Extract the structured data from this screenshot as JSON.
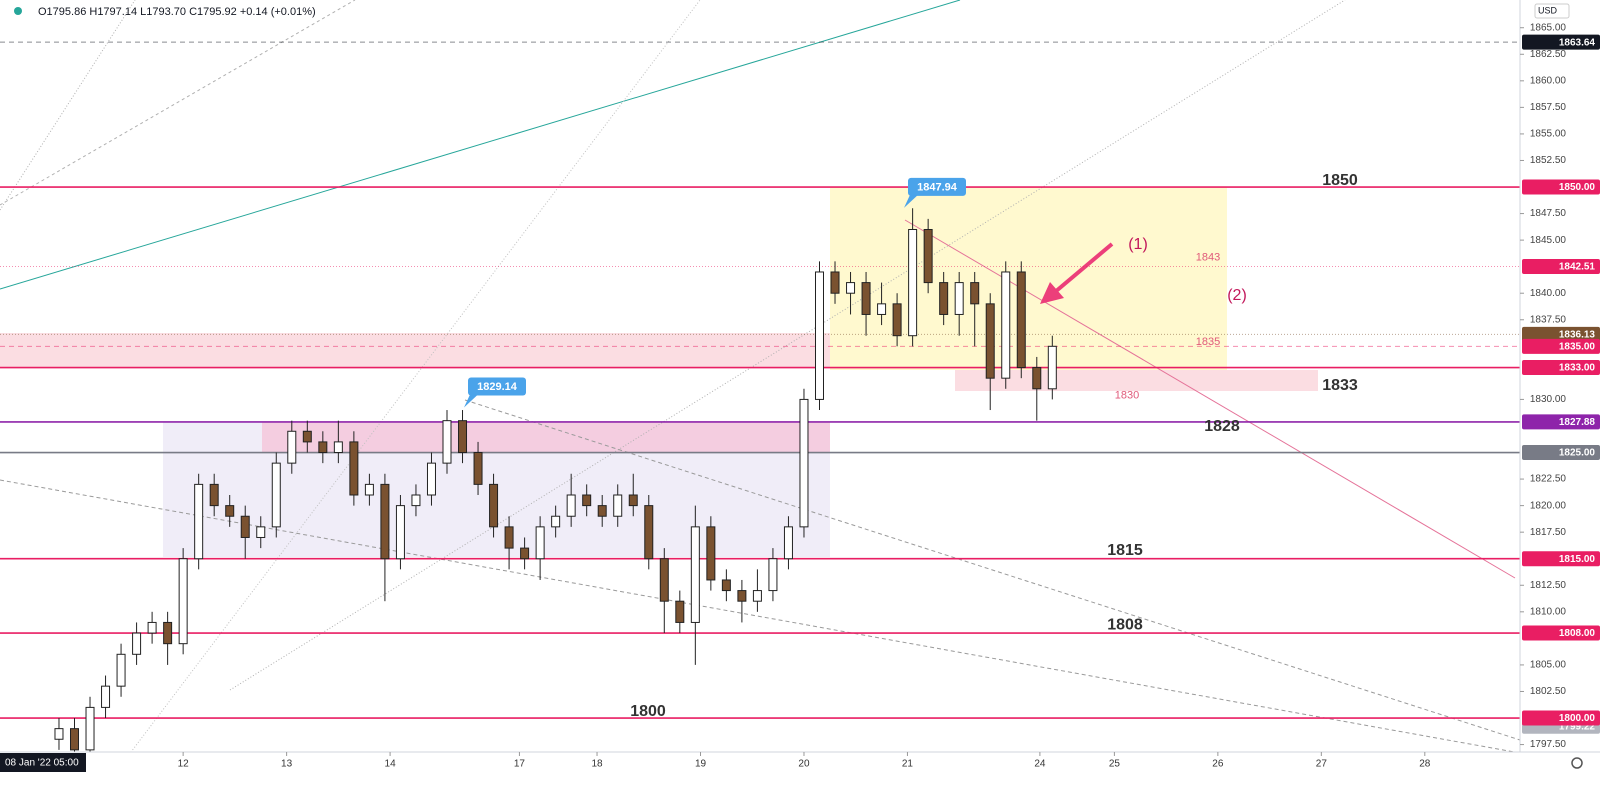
{
  "chart_data": {
    "type": "candlestick",
    "header": "O1795.86 H1797.14 L1793.70 C1795.92 +0.14 (+0.01%)",
    "currency": "USD",
    "crosshair_time": "08 Jan '22 05:00",
    "up_color": "#ffffff",
    "down_color": "#7a5230",
    "xlim": [
      -1.77,
      12.92
    ],
    "ylim": [
      1796.8,
      1867.61
    ],
    "x": [
      -1.2,
      -1.05,
      -0.9,
      -0.75,
      -0.6,
      -0.45,
      -0.3,
      -0.15,
      0,
      0.15,
      0.3,
      0.45,
      0.6,
      0.75,
      0.9,
      1.05,
      1.2,
      1.35,
      1.5,
      1.65,
      1.8,
      1.95,
      2.1,
      2.25,
      2.4,
      2.55,
      2.7,
      2.85,
      3,
      3.15,
      3.3,
      3.45,
      3.6,
      3.75,
      3.9,
      4.05,
      4.2,
      4.35,
      4.5,
      4.65,
      4.8,
      4.95,
      5.1,
      5.25,
      5.4,
      5.55,
      5.7,
      5.85,
      6,
      6.15,
      6.3,
      6.45,
      6.6,
      6.75,
      6.9,
      7.05,
      7.2,
      7.35,
      7.5,
      7.65,
      7.8,
      7.95,
      8.1,
      8.25,
      8.4
    ],
    "open": [
      1798,
      1799,
      1797,
      1801,
      1803,
      1806,
      1808,
      1809,
      1807,
      1815,
      1822,
      1820,
      1819,
      1817,
      1818,
      1824,
      1827,
      1826,
      1825,
      1826,
      1821,
      1822,
      1815,
      1820,
      1821,
      1824,
      1828,
      1825,
      1822,
      1818,
      1816,
      1815,
      1818,
      1819,
      1821,
      1820,
      1819,
      1821,
      1820,
      1815,
      1811,
      1809,
      1818,
      1813,
      1812,
      1811,
      1812,
      1815,
      1818,
      1830,
      1842,
      1840,
      1841,
      1838,
      1839,
      1836,
      1846,
      1841,
      1838,
      1841,
      1839,
      1832,
      1842,
      1833,
      1831
    ],
    "high": [
      1800,
      1800,
      1802,
      1804,
      1807,
      1809,
      1810,
      1810,
      1816,
      1823,
      1823,
      1821,
      1820,
      1819,
      1825,
      1828,
      1828,
      1827,
      1828,
      1827,
      1823,
      1823,
      1821,
      1822,
      1825,
      1829,
      1829,
      1826,
      1823,
      1819,
      1817,
      1819,
      1820,
      1823,
      1822,
      1821,
      1822,
      1823,
      1821,
      1816,
      1812,
      1820,
      1819,
      1814,
      1813,
      1814,
      1816,
      1819,
      1831,
      1843,
      1843,
      1842,
      1842,
      1841,
      1840,
      1848,
      1847,
      1842,
      1842,
      1842,
      1840,
      1843,
      1843,
      1834,
      1836
    ],
    "low": [
      1797,
      1796,
      1796,
      1800,
      1802,
      1805,
      1807,
      1805,
      1806,
      1814,
      1819,
      1818,
      1815,
      1816,
      1817,
      1823,
      1825,
      1824,
      1824,
      1820,
      1820,
      1811,
      1814,
      1819,
      1820,
      1823,
      1824,
      1821,
      1817,
      1814,
      1814,
      1813,
      1817,
      1818,
      1819,
      1818,
      1818,
      1819,
      1814,
      1808,
      1808,
      1805,
      1812,
      1811,
      1809,
      1810,
      1811,
      1814,
      1817,
      1829,
      1839,
      1838,
      1836,
      1837,
      1835,
      1835,
      1840,
      1837,
      1836,
      1835,
      1829,
      1831,
      1832,
      1828,
      1830
    ],
    "close": [
      1799,
      1797,
      1801,
      1803,
      1806,
      1808,
      1809,
      1807,
      1815,
      1822,
      1820,
      1819,
      1817,
      1818,
      1824,
      1827,
      1826,
      1825,
      1826,
      1821,
      1822,
      1815,
      1820,
      1821,
      1824,
      1828,
      1825,
      1822,
      1818,
      1816,
      1815,
      1818,
      1819,
      1821,
      1820,
      1819,
      1821,
      1820,
      1815,
      1811,
      1809,
      1818,
      1813,
      1812,
      1811,
      1812,
      1815,
      1818,
      1830,
      1842,
      1840,
      1841,
      1838,
      1839,
      1836,
      1846,
      1841,
      1838,
      1841,
      1839,
      1832,
      1842,
      1833,
      1831,
      1835
    ],
    "xticks": [
      {
        "value": 0,
        "label": "12"
      },
      {
        "value": 1,
        "label": "13"
      },
      {
        "value": 2,
        "label": "14"
      },
      {
        "value": 3.25,
        "label": "17"
      },
      {
        "value": 4,
        "label": "18"
      },
      {
        "value": 5,
        "label": "19"
      },
      {
        "value": 6,
        "label": "20"
      },
      {
        "value": 7,
        "label": "21"
      },
      {
        "value": 8.28,
        "label": "24"
      },
      {
        "value": 9,
        "label": "25"
      },
      {
        "value": 10,
        "label": "26"
      },
      {
        "value": 11,
        "label": "27"
      },
      {
        "value": 12,
        "label": "28"
      }
    ],
    "yticks": [
      {
        "value": 1865,
        "label": "1865.00"
      },
      {
        "value": 1862.5,
        "label": "1862.50"
      },
      {
        "value": 1860,
        "label": "1860.00"
      },
      {
        "value": 1857.5,
        "label": "1857.50"
      },
      {
        "value": 1855,
        "label": "1855.00"
      },
      {
        "value": 1852.5,
        "label": "1852.50"
      },
      {
        "value": 1847.5,
        "label": "1847.50"
      },
      {
        "value": 1845,
        "label": "1845.00"
      },
      {
        "value": 1840,
        "label": "1840.00"
      },
      {
        "value": 1837.5,
        "label": "1837.50"
      },
      {
        "value": 1830,
        "label": "1830.00"
      },
      {
        "value": 1822.5,
        "label": "1822.50"
      },
      {
        "value": 1820,
        "label": "1820.00"
      },
      {
        "value": 1817.5,
        "label": "1817.50"
      },
      {
        "value": 1812.5,
        "label": "1812.50"
      },
      {
        "value": 1810,
        "label": "1810.00"
      },
      {
        "value": 1805,
        "label": "1805.00"
      },
      {
        "value": 1802.5,
        "label": "1802.50"
      },
      {
        "value": 1797.5,
        "label": "1797.50"
      }
    ],
    "price_badges": [
      {
        "value": 1863.64,
        "label": "1863.64",
        "color": "#131722",
        "line": "dashed"
      },
      {
        "value": 1850,
        "label": "1850.00",
        "color": "#e91e63",
        "line": "solid"
      },
      {
        "value": 1842.51,
        "label": "1842.51",
        "color": "#e91e63",
        "line": "dotted"
      },
      {
        "value": 1836.13,
        "label": "1836.13",
        "color": "#7a5230",
        "line": "dotted"
      },
      {
        "value": 1835,
        "label": "1835.00",
        "color": "#e91e63",
        "line": "dashed"
      },
      {
        "value": 1833,
        "label": "1833.00",
        "color": "#e91e63",
        "line": "solid"
      },
      {
        "value": 1827.88,
        "label": "1827.88",
        "color": "#8e24aa",
        "line": "solid"
      },
      {
        "value": 1825,
        "label": "1825.00",
        "color": "#787b86",
        "line": "solid"
      },
      {
        "value": 1815,
        "label": "1815.00",
        "color": "#e91e63",
        "line": "solid"
      },
      {
        "value": 1808,
        "label": "1808.00",
        "color": "#e91e63",
        "line": "solid"
      },
      {
        "value": 1799.22,
        "label": "1799.22",
        "color": "#b2b5be",
        "line": "none"
      },
      {
        "value": 1800,
        "label": "1800.00",
        "color": "#e91e63",
        "line": "solid"
      }
    ],
    "level_labels": [
      1850,
      1833,
      1828,
      1815,
      1808,
      1800
    ],
    "box_labels": [
      1843,
      1835,
      1830
    ],
    "callouts": [
      1847.94,
      1829.14
    ],
    "annotations": [
      "(1)",
      "(2)"
    ]
  }
}
